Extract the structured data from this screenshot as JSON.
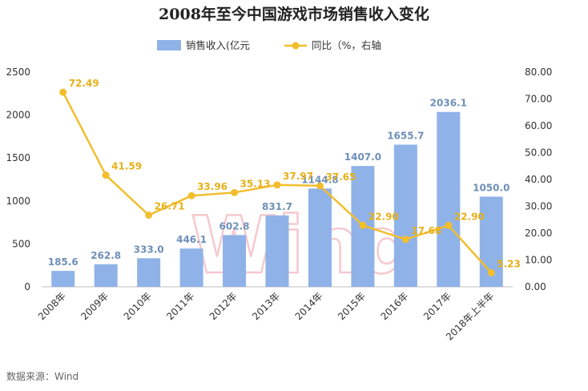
{
  "title": "2008年至今中国游戏市场销售收入变化",
  "source": "数据来源：Wind",
  "watermark": "Wind",
  "colors": {
    "bar": "#8fb2e8",
    "line": "#f2be2e",
    "axis": "#bfbfbf"
  },
  "chart_data": {
    "type": "bar",
    "categories": [
      "2008年",
      "2009年",
      "2010年",
      "2011年",
      "2012年",
      "2013年",
      "2014年",
      "2015年",
      "2016年",
      "2017年",
      "2018年上半年"
    ],
    "series": [
      {
        "name": "销售收入(亿元",
        "type": "bar",
        "axis": "left",
        "values": [
          185.6,
          262.8,
          333.0,
          446.1,
          602.8,
          831.7,
          1144.8,
          1407.0,
          1655.7,
          2036.1,
          1050.0
        ],
        "labels": [
          "185.6",
          "262.8",
          "333.0",
          "446.1",
          "602.8",
          "831.7",
          "1144.8",
          "1407.0",
          "1655.7",
          "2036.1",
          "1050.0"
        ]
      },
      {
        "name": "同比（%，右轴",
        "type": "line",
        "axis": "right",
        "values": [
          72.49,
          41.59,
          26.71,
          33.96,
          35.13,
          37.97,
          37.65,
          22.9,
          17.68,
          22.9,
          5.23
        ],
        "labels": [
          "72.49",
          "41.59",
          "26.71",
          "33.96",
          "35.13",
          "37.97",
          "37.65",
          "22.90",
          "17.68",
          "22.90",
          "5.23"
        ]
      }
    ],
    "y_left": {
      "ylim": [
        0,
        2500
      ],
      "ticks": [
        "0",
        "500",
        "1000",
        "1500",
        "2000",
        "2500"
      ]
    },
    "y_right": {
      "ylim": [
        0,
        80
      ],
      "ticks": [
        "0.00",
        "10.00",
        "20.00",
        "30.00",
        "40.00",
        "50.00",
        "60.00",
        "70.00",
        "80.00"
      ]
    },
    "legend_position": "top-center",
    "grid": false
  }
}
